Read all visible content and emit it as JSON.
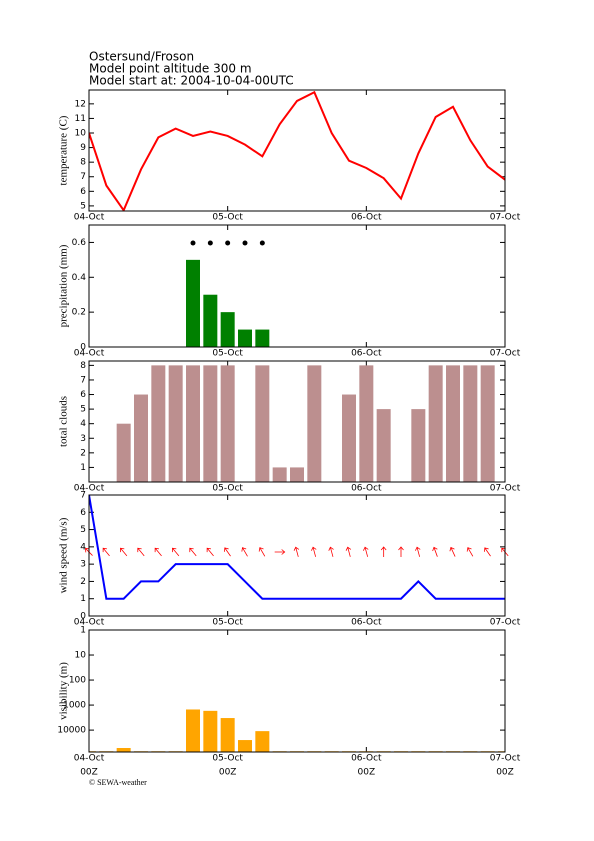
{
  "header": {
    "lines": [
      "Ostersund/Froson",
      "Model point altitude  300 m",
      "Model start at: 2004-10-04-00UTC"
    ]
  },
  "footer": "© SEWA-weather",
  "chart_data": [
    {
      "type": "line",
      "y_label": "temperature (C)",
      "color": "#ff0000",
      "x": [
        0,
        3,
        6,
        9,
        12,
        15,
        18,
        21,
        24,
        27,
        30,
        33,
        36,
        39,
        42,
        45,
        48,
        51,
        54,
        57,
        60,
        63,
        66,
        69,
        72
      ],
      "values": [
        10.0,
        6.4,
        4.7,
        7.5,
        9.7,
        10.3,
        9.8,
        10.1,
        9.8,
        9.2,
        8.4,
        10.6,
        12.2,
        12.8,
        10.0,
        8.1,
        7.6,
        6.9,
        5.5,
        8.6,
        11.1,
        11.8,
        9.5,
        7.7,
        6.8
      ],
      "xlim": [
        0,
        72
      ],
      "xticks": [
        {
          "value": 0,
          "label": "04-Oct"
        },
        {
          "value": 24,
          "label": "05-Oct"
        },
        {
          "value": 48,
          "label": "06-Oct"
        },
        {
          "value": 72,
          "label": "07-Oct"
        }
      ],
      "ylim": [
        4.65,
        12.95
      ],
      "yticks": [
        5,
        6,
        7,
        8,
        9,
        10,
        11,
        12
      ]
    },
    {
      "type": "bar",
      "y_label": "precipitation (mm)",
      "color": "#008000",
      "symbols": true,
      "x": [
        0,
        3,
        6,
        9,
        12,
        15,
        18,
        21,
        24,
        27,
        30,
        33,
        36,
        39,
        42,
        45,
        48,
        51,
        54,
        57,
        60,
        63,
        66,
        69,
        72
      ],
      "values": [
        0,
        0,
        0,
        0,
        0,
        0,
        0.5,
        0.3,
        0.2,
        0.1,
        0.1,
        0,
        0,
        0,
        0,
        0,
        0,
        0,
        0,
        0,
        0,
        0,
        0,
        0,
        0
      ],
      "xlim": [
        0,
        72
      ],
      "xticks": [
        {
          "value": 0,
          "label": "04-Oct"
        },
        {
          "value": 24,
          "label": "05-Oct"
        },
        {
          "value": 48,
          "label": "06-Oct"
        },
        {
          "value": 72,
          "label": "07-Oct"
        }
      ],
      "ylim": [
        0,
        0.7
      ],
      "yticks": [
        0,
        0.2,
        0.4,
        0.6
      ]
    },
    {
      "type": "bar",
      "y_label": "total clouds",
      "color": "#bc8f8f",
      "x": [
        0,
        3,
        6,
        9,
        12,
        15,
        18,
        21,
        24,
        27,
        30,
        33,
        36,
        39,
        42,
        45,
        48,
        51,
        54,
        57,
        60,
        63,
        66,
        69,
        72
      ],
      "values": [
        0,
        0,
        4,
        6,
        8,
        8,
        8,
        8,
        8,
        0,
        8,
        1,
        1,
        8,
        0,
        6,
        8,
        5,
        0,
        5,
        8,
        8,
        8,
        8,
        0
      ],
      "xlim": [
        0,
        72
      ],
      "xticks": [
        {
          "value": 0,
          "label": "04-Oct"
        },
        {
          "value": 24,
          "label": "05-Oct"
        },
        {
          "value": 48,
          "label": "06-Oct"
        },
        {
          "value": 72,
          "label": "07-Oct"
        }
      ],
      "ylim": [
        0,
        8.3
      ],
      "yticks": [
        1,
        2,
        3,
        4,
        5,
        6,
        7,
        8
      ]
    },
    {
      "type": "line",
      "y_label": "wind speed (m/s)",
      "color": "#0000ff",
      "arrow_color": "#ff0000",
      "x": [
        0,
        3,
        6,
        9,
        12,
        15,
        18,
        21,
        24,
        27,
        30,
        33,
        36,
        39,
        42,
        45,
        48,
        51,
        54,
        57,
        60,
        63,
        66,
        69,
        72
      ],
      "values": [
        7,
        1,
        1,
        2,
        2,
        3,
        3,
        3,
        3,
        2,
        1,
        1,
        1,
        1,
        1,
        1,
        1,
        1,
        1,
        2,
        1,
        1,
        1,
        1,
        1
      ],
      "directions": [
        135,
        140,
        140,
        140,
        140,
        140,
        140,
        140,
        145,
        150,
        150,
        270,
        165,
        165,
        165,
        165,
        165,
        180,
        180,
        165,
        160,
        155,
        150,
        145,
        140
      ],
      "xlim": [
        0,
        72
      ],
      "xticks": [
        {
          "value": 0,
          "label": "04-Oct"
        },
        {
          "value": 24,
          "label": "05-Oct"
        },
        {
          "value": 48,
          "label": "06-Oct"
        },
        {
          "value": 72,
          "label": "07-Oct"
        }
      ],
      "ylim": [
        0,
        7
      ],
      "yticks": [
        0,
        1,
        2,
        3,
        4,
        5,
        6,
        7
      ]
    },
    {
      "type": "bar",
      "y_label": "visibility (m)",
      "color": "#ffa500",
      "log_y": true,
      "y_inverted": true,
      "x": [
        0,
        3,
        6,
        9,
        12,
        15,
        18,
        21,
        24,
        27,
        30,
        33,
        36,
        39,
        42,
        45,
        48,
        51,
        54,
        57,
        60,
        63,
        66,
        69,
        72
      ],
      "values": [
        70000,
        70000,
        52000,
        70000,
        70000,
        70000,
        1500,
        1700,
        3300,
        25000,
        11000,
        70000,
        70000,
        70000,
        70000,
        70000,
        70000,
        70000,
        70000,
        70000,
        70000,
        70000,
        70000,
        70000,
        70000
      ],
      "xlim": [
        0,
        72
      ],
      "xticks": [
        {
          "value": 0,
          "label": "04-Oct"
        },
        {
          "value": 24,
          "label": "05-Oct"
        },
        {
          "value": 48,
          "label": "06-Oct"
        },
        {
          "value": 72,
          "label": "07-Oct"
        }
      ],
      "xtick_sublabels": [
        "00Z",
        "00Z",
        "00Z",
        "00Z"
      ],
      "ylim": [
        1,
        75000
      ],
      "yticks": [
        1,
        10,
        100,
        1000,
        10000
      ]
    }
  ]
}
